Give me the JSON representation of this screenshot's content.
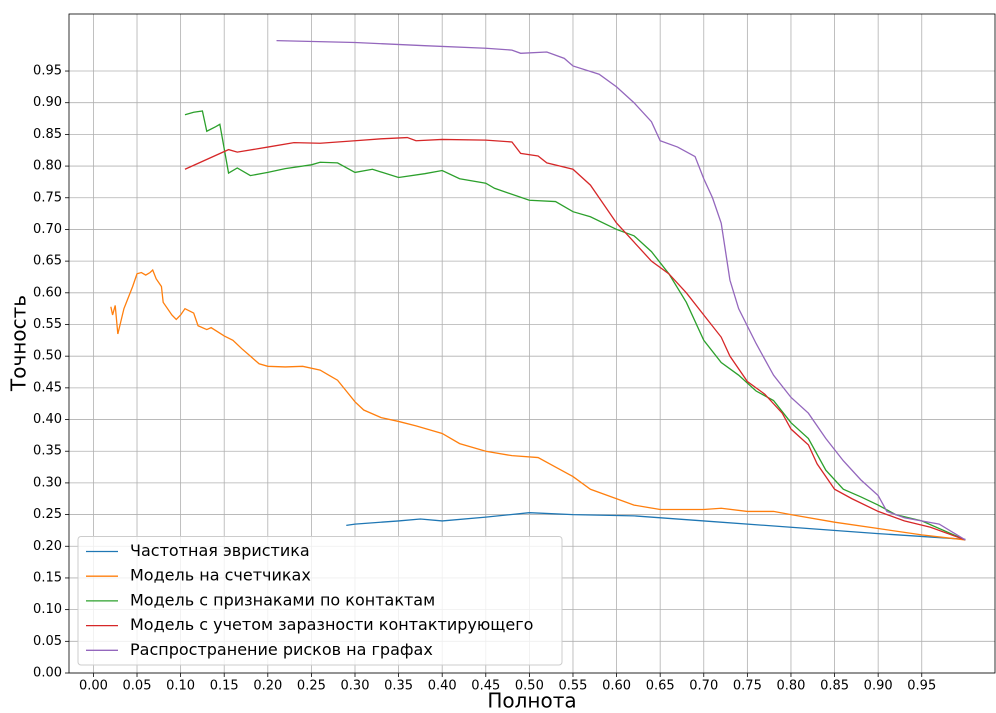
{
  "chart_data": {
    "type": "line",
    "xlabel": "Полнота",
    "ylabel": "Точность",
    "xlim": [
      -0.028,
      1.034
    ],
    "ylim": [
      0,
      1.04
    ],
    "xticks": [
      {
        "value": 0,
        "label": "0.00"
      },
      0.05,
      {
        "value": 0.1,
        "label": "0.10"
      },
      0.15,
      {
        "value": 0.2,
        "label": "0.20"
      },
      0.25,
      {
        "value": 0.3,
        "label": "0.30"
      },
      0.35,
      {
        "value": 0.4,
        "label": "0.40"
      },
      0.45,
      {
        "value": 0.5,
        "label": "0.50"
      },
      0.55,
      {
        "value": 0.6,
        "label": "0.60"
      },
      0.65,
      {
        "value": 0.7,
        "label": "0.70"
      },
      0.75,
      {
        "value": 0.8,
        "label": "0.80"
      },
      0.85,
      {
        "value": 0.9,
        "label": "0.90"
      },
      0.95
    ],
    "yticks": [
      {
        "value": 0,
        "label": "0.00"
      },
      0.05,
      {
        "value": 0.1,
        "label": "0.10"
      },
      0.15,
      {
        "value": 0.2,
        "label": "0.20"
      },
      0.25,
      {
        "value": 0.3,
        "label": "0.30"
      },
      0.35,
      {
        "value": 0.4,
        "label": "0.40"
      },
      0.45,
      {
        "value": 0.5,
        "label": "0.50"
      },
      0.55,
      {
        "value": 0.6,
        "label": "0.60"
      },
      0.65,
      {
        "value": 0.7,
        "label": "0.70"
      },
      0.75,
      {
        "value": 0.8,
        "label": "0.80"
      },
      0.85,
      {
        "value": 0.9,
        "label": "0.90"
      },
      0.95
    ],
    "grid": true,
    "legend": "lower left",
    "series": [
      {
        "name": "Частотная эвристика",
        "color": "#1f77b4",
        "x": [
          0.29,
          0.3,
          0.35,
          0.375,
          0.4,
          0.45,
          0.5,
          0.55,
          0.62,
          0.7,
          0.8,
          0.9,
          1.0
        ],
        "values": [
          0.233,
          0.235,
          0.24,
          0.243,
          0.24,
          0.246,
          0.253,
          0.25,
          0.248,
          0.24,
          0.23,
          0.22,
          0.211
        ]
      },
      {
        "name": "Модель на счетчиках",
        "color": "#ff7f0e",
        "x": [
          0.02,
          0.022,
          0.025,
          0.028,
          0.035,
          0.045,
          0.05,
          0.055,
          0.06,
          0.065,
          0.068,
          0.072,
          0.078,
          0.08,
          0.09,
          0.095,
          0.1,
          0.105,
          0.115,
          0.12,
          0.13,
          0.135,
          0.15,
          0.16,
          0.17,
          0.18,
          0.19,
          0.2,
          0.22,
          0.24,
          0.26,
          0.27,
          0.28,
          0.29,
          0.3,
          0.31,
          0.33,
          0.35,
          0.37,
          0.4,
          0.42,
          0.45,
          0.48,
          0.51,
          0.53,
          0.55,
          0.57,
          0.6,
          0.62,
          0.65,
          0.7,
          0.72,
          0.75,
          0.78,
          0.8,
          0.85,
          0.9,
          0.95,
          1.0
        ],
        "values": [
          0.578,
          0.565,
          0.58,
          0.535,
          0.575,
          0.61,
          0.63,
          0.632,
          0.628,
          0.632,
          0.636,
          0.622,
          0.61,
          0.585,
          0.565,
          0.558,
          0.565,
          0.575,
          0.568,
          0.548,
          0.542,
          0.545,
          0.532,
          0.525,
          0.512,
          0.5,
          0.488,
          0.484,
          0.483,
          0.484,
          0.478,
          0.47,
          0.462,
          0.445,
          0.428,
          0.415,
          0.403,
          0.397,
          0.39,
          0.378,
          0.362,
          0.35,
          0.343,
          0.34,
          0.325,
          0.31,
          0.29,
          0.275,
          0.265,
          0.258,
          0.258,
          0.26,
          0.255,
          0.255,
          0.25,
          0.238,
          0.228,
          0.218,
          0.21
        ]
      },
      {
        "name": "Модель с признаками по контактам",
        "color": "#2ca02c",
        "x": [
          0.105,
          0.115,
          0.125,
          0.13,
          0.14,
          0.145,
          0.155,
          0.165,
          0.18,
          0.2,
          0.22,
          0.25,
          0.26,
          0.28,
          0.3,
          0.32,
          0.35,
          0.38,
          0.4,
          0.42,
          0.45,
          0.46,
          0.5,
          0.53,
          0.55,
          0.57,
          0.6,
          0.62,
          0.64,
          0.66,
          0.68,
          0.7,
          0.72,
          0.74,
          0.76,
          0.78,
          0.8,
          0.82,
          0.84,
          0.86,
          0.88,
          0.9,
          0.92,
          0.95,
          1.0
        ],
        "values": [
          0.881,
          0.885,
          0.887,
          0.855,
          0.862,
          0.866,
          0.789,
          0.797,
          0.785,
          0.79,
          0.796,
          0.802,
          0.806,
          0.805,
          0.79,
          0.795,
          0.782,
          0.788,
          0.793,
          0.78,
          0.773,
          0.765,
          0.746,
          0.744,
          0.728,
          0.72,
          0.7,
          0.69,
          0.665,
          0.63,
          0.585,
          0.525,
          0.49,
          0.47,
          0.445,
          0.43,
          0.395,
          0.37,
          0.32,
          0.29,
          0.278,
          0.265,
          0.25,
          0.24,
          0.21
        ]
      },
      {
        "name": "Модель с учетом заразности контактирующего",
        "color": "#d62728",
        "x": [
          0.105,
          0.155,
          0.165,
          0.2,
          0.23,
          0.26,
          0.3,
          0.33,
          0.36,
          0.37,
          0.4,
          0.45,
          0.48,
          0.49,
          0.51,
          0.52,
          0.55,
          0.57,
          0.58,
          0.6,
          0.62,
          0.64,
          0.66,
          0.68,
          0.7,
          0.72,
          0.73,
          0.75,
          0.77,
          0.79,
          0.8,
          0.82,
          0.83,
          0.85,
          0.87,
          0.9,
          0.93,
          0.96,
          1.0
        ],
        "values": [
          0.795,
          0.826,
          0.822,
          0.83,
          0.837,
          0.836,
          0.84,
          0.843,
          0.845,
          0.84,
          0.842,
          0.841,
          0.838,
          0.82,
          0.816,
          0.805,
          0.795,
          0.77,
          0.75,
          0.71,
          0.68,
          0.65,
          0.63,
          0.6,
          0.565,
          0.53,
          0.5,
          0.46,
          0.44,
          0.41,
          0.385,
          0.36,
          0.33,
          0.29,
          0.275,
          0.255,
          0.24,
          0.23,
          0.21
        ]
      },
      {
        "name": "Распространение рисков на графах",
        "color": "#9467bd",
        "x": [
          0.21,
          0.3,
          0.38,
          0.45,
          0.48,
          0.49,
          0.52,
          0.54,
          0.55,
          0.58,
          0.6,
          0.62,
          0.64,
          0.65,
          0.67,
          0.69,
          0.7,
          0.71,
          0.72,
          0.73,
          0.74,
          0.76,
          0.78,
          0.8,
          0.82,
          0.84,
          0.86,
          0.88,
          0.9,
          0.91,
          0.93,
          0.97,
          1.0
        ],
        "values": [
          0.998,
          0.995,
          0.99,
          0.986,
          0.983,
          0.978,
          0.98,
          0.97,
          0.958,
          0.945,
          0.925,
          0.9,
          0.87,
          0.84,
          0.83,
          0.815,
          0.78,
          0.75,
          0.71,
          0.62,
          0.575,
          0.52,
          0.47,
          0.435,
          0.41,
          0.37,
          0.335,
          0.305,
          0.28,
          0.255,
          0.245,
          0.235,
          0.21
        ]
      }
    ]
  }
}
